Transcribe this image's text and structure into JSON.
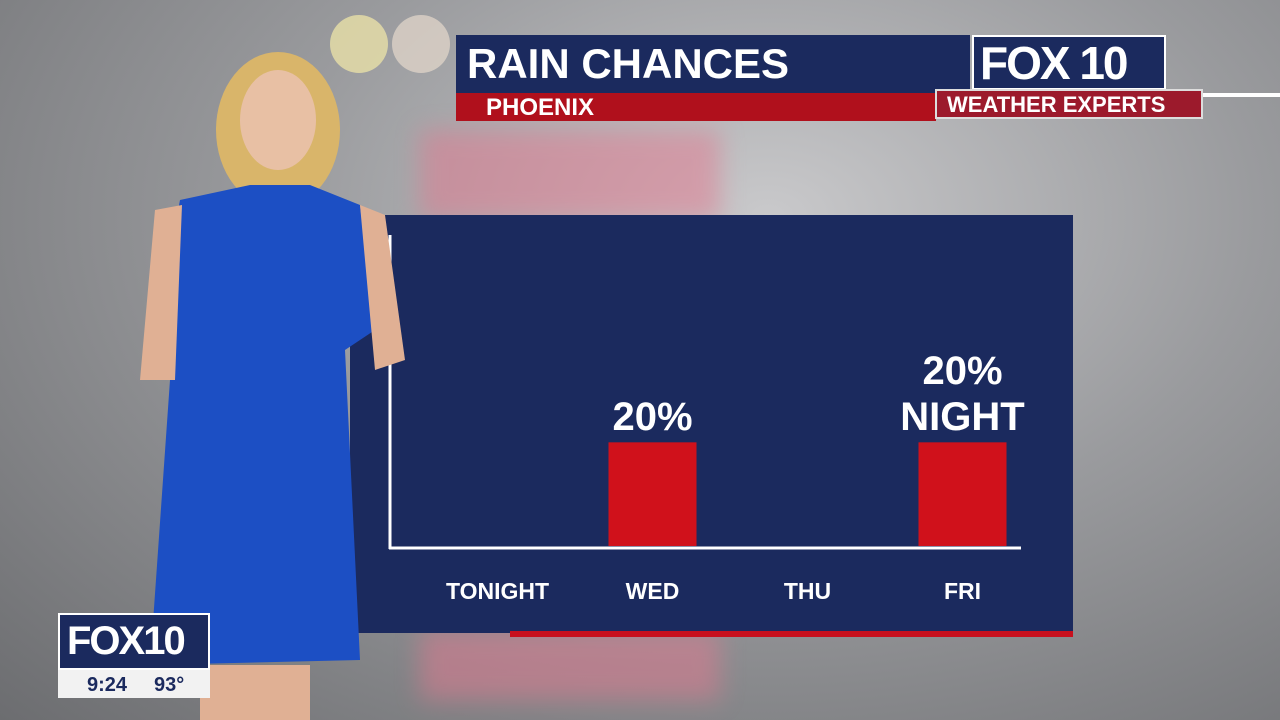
{
  "header": {
    "title": "RAIN CHANCES",
    "subtitle": "PHOENIX",
    "logo": "FOX 10",
    "tagline": "WEATHER EXPERTS"
  },
  "bug": {
    "logo": "FOX10",
    "time": "9:24",
    "temperature": "93°"
  },
  "chart_data": {
    "type": "bar",
    "categories": [
      "TONIGHT",
      "WED",
      "THU",
      "FRI"
    ],
    "values": [
      0,
      20,
      0,
      20
    ],
    "value_labels": [
      null,
      "20%",
      null,
      "20% NIGHT"
    ],
    "color": "#d0111b",
    "ylim": [
      0,
      60
    ]
  }
}
